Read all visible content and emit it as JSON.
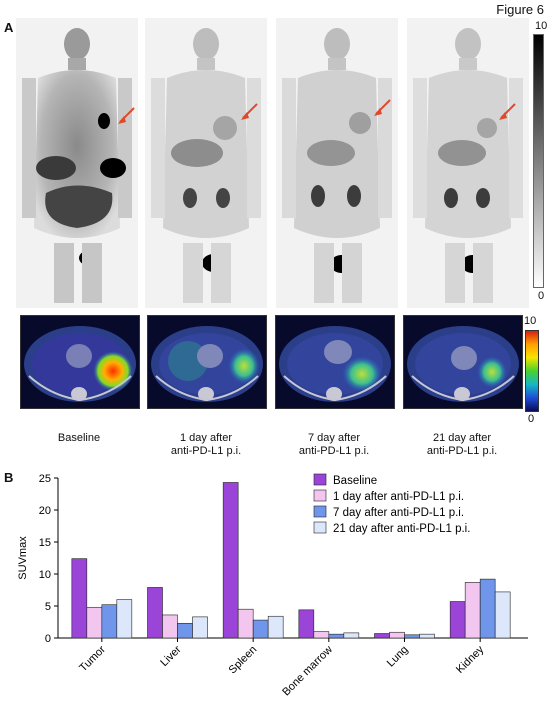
{
  "figure": {
    "title": "Figure 6",
    "panel_a_label": "A",
    "panel_b_label": "B"
  },
  "panel_a": {
    "pet_colorbar": {
      "max": "10",
      "min": "0",
      "colors": [
        "#ffffff",
        "#000000"
      ]
    },
    "ct_colorbar": {
      "max": "10",
      "min": "0"
    },
    "captions": [
      {
        "line1": "Baseline",
        "line2": ""
      },
      {
        "line1": "1 day after",
        "line2": "anti-PD-L1 p.i."
      },
      {
        "line1": "7 day after",
        "line2": "anti-PD-L1 p.i."
      },
      {
        "line1": "21 day after",
        "line2": "anti-PD-L1 p.i."
      }
    ],
    "arrow_color": "#e0482a"
  },
  "chart_data": {
    "type": "bar",
    "categories": [
      "Tumor",
      "Liver",
      "Spleen",
      "Bone marrow",
      "Lung",
      "Kidney"
    ],
    "ylabel": "SUVmax",
    "ylim": [
      0,
      25
    ],
    "yticks": [
      "0",
      "5",
      "10",
      "15",
      "20",
      "25"
    ],
    "legend_position": "top-right",
    "series": [
      {
        "name": "Baseline",
        "color": "#9b44d8",
        "values": [
          12.4,
          7.9,
          24.3,
          4.4,
          0.7,
          5.7
        ]
      },
      {
        "name": "1 day after anti-PD-L1 p.i.",
        "color": "#f2c6ee",
        "values": [
          4.8,
          3.6,
          4.5,
          1.0,
          0.9,
          8.7
        ]
      },
      {
        "name": "7 day after anti-PD-L1 p.i.",
        "color": "#6f96ea",
        "values": [
          5.2,
          2.3,
          2.8,
          0.6,
          0.5,
          9.2
        ]
      },
      {
        "name": "21 day after anti-PD-L1 p.i.",
        "color": "#dce7fb",
        "values": [
          6.0,
          3.3,
          3.4,
          0.8,
          0.6,
          7.2
        ]
      }
    ]
  }
}
